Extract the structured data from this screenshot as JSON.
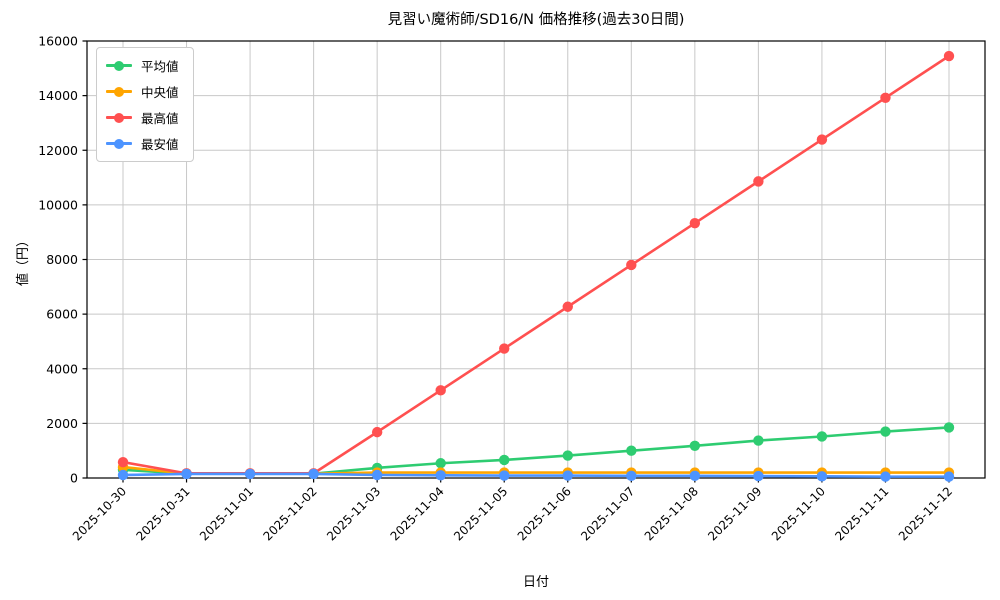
{
  "page": {
    "background": "#ffffff"
  },
  "chart_data": {
    "type": "line",
    "title": "見習い魔術師/SD16/N 価格推移(過去30日間)",
    "xlabel": "日付",
    "ylabel": "値（円）",
    "ylim": [
      0,
      16000
    ],
    "yticks": [
      0,
      2000,
      4000,
      6000,
      8000,
      10000,
      12000,
      14000,
      16000
    ],
    "grid": true,
    "grid_color": "#c8c8c8",
    "axis_color": "#000000",
    "legend_position": "upper left",
    "categories": [
      "2025-10-30",
      "2025-10-31",
      "2025-11-01",
      "2025-11-02",
      "2025-11-03",
      "2025-11-04",
      "2025-11-05",
      "2025-11-06",
      "2025-11-07",
      "2025-11-08",
      "2025-11-09",
      "2025-11-10",
      "2025-11-11",
      "2025-11-12"
    ],
    "series": [
      {
        "key": "average",
        "name": "平均値",
        "color": "#2ecc71",
        "values": [
          300,
          160,
          160,
          160,
          370,
          540,
          660,
          820,
          1000,
          1180,
          1370,
          1520,
          1700,
          1850
        ]
      },
      {
        "key": "median",
        "name": "中央値",
        "color": "#ffa500",
        "values": [
          400,
          160,
          160,
          160,
          200,
          200,
          200,
          200,
          200,
          200,
          200,
          200,
          200,
          200
        ]
      },
      {
        "key": "highest",
        "name": "最高値",
        "color": "#ff5050",
        "values": [
          580,
          170,
          170,
          170,
          1680,
          3210,
          4740,
          6270,
          7800,
          9330,
          10860,
          12390,
          13920,
          15450
        ]
      },
      {
        "key": "lowest",
        "name": "最安値",
        "color": "#4d94ff",
        "values": [
          110,
          150,
          150,
          150,
          110,
          100,
          90,
          90,
          80,
          80,
          70,
          60,
          50,
          50
        ]
      }
    ]
  }
}
